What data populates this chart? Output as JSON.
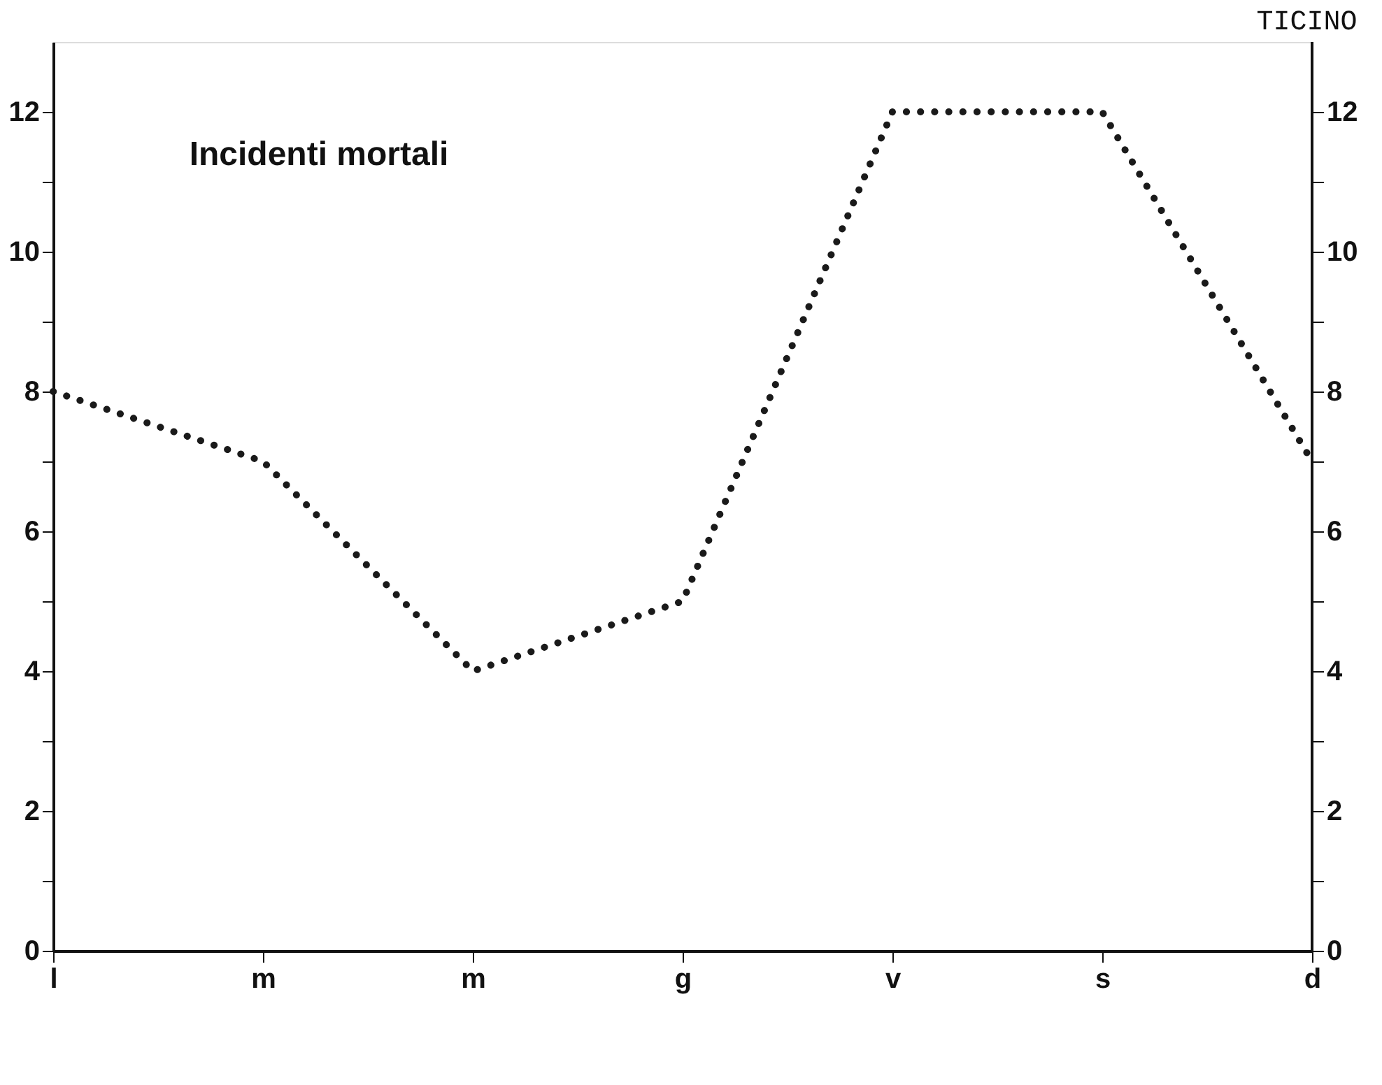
{
  "chart_data": {
    "type": "line",
    "title": "TICINO",
    "categories": [
      "l",
      "m",
      "m",
      "g",
      "v",
      "s",
      "d"
    ],
    "series": [
      {
        "color": "#1a1a1a",
        "values": [
          8,
          7,
          4,
          5,
          12,
          12,
          7
        ]
      }
    ],
    "annotations": [
      "Incidenti mortali"
    ],
    "ylim": [
      0,
      13
    ],
    "yticks": [
      0,
      {
        "value": 1,
        "label": null
      },
      2,
      {
        "value": 3,
        "label": null
      },
      4,
      {
        "value": 5,
        "label": null
      },
      6,
      {
        "value": 7,
        "label": null
      },
      8,
      {
        "value": 9,
        "label": null
      },
      10,
      {
        "value": 11,
        "label": null
      },
      12
    ],
    "y2lim": [
      0,
      13
    ],
    "y2ticks": [
      0,
      {
        "value": 1,
        "label": null
      },
      2,
      {
        "value": 3,
        "label": null
      },
      4,
      {
        "value": 5,
        "label": null
      },
      6,
      {
        "value": 7,
        "label": null
      },
      8,
      {
        "value": 9,
        "label": null
      },
      10,
      {
        "value": 11,
        "label": null
      },
      12
    ],
    "grid": false,
    "marker": "none",
    "line_style": "dotted"
  }
}
